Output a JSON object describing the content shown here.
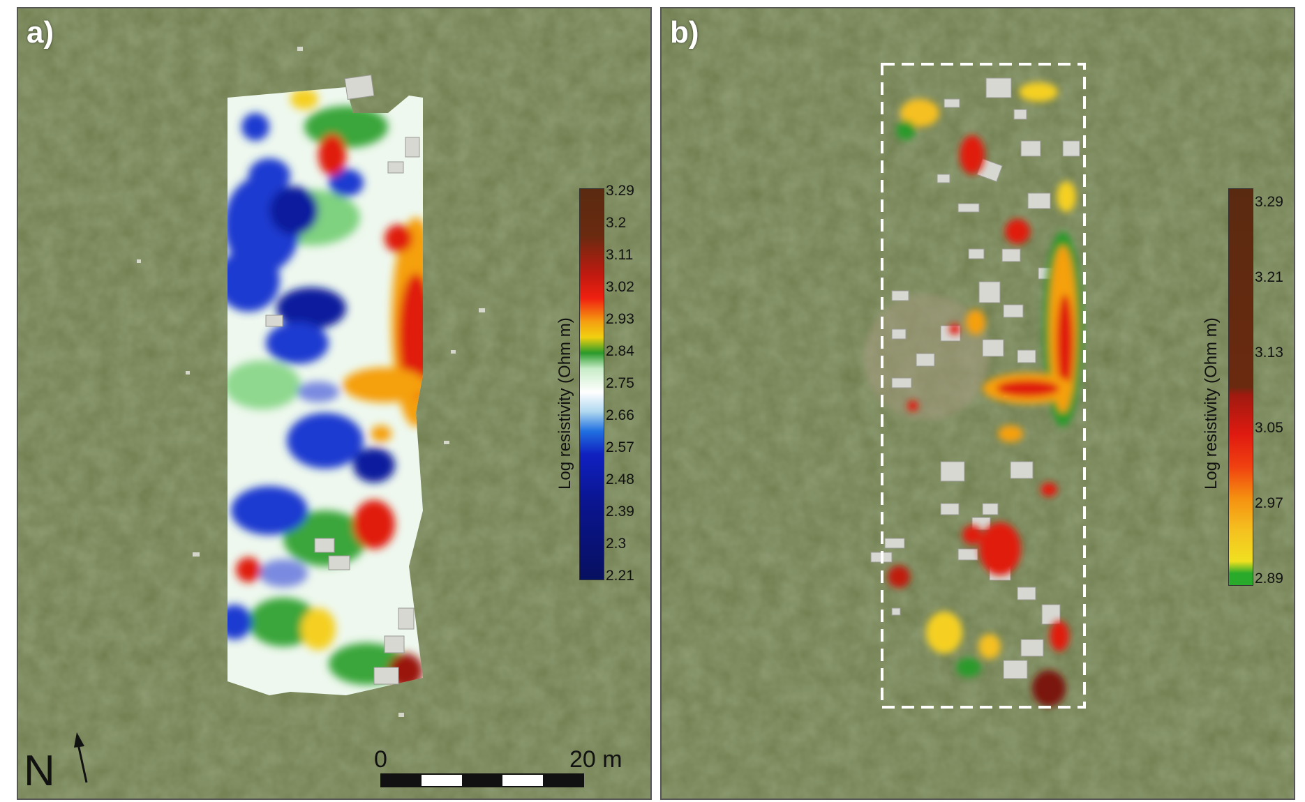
{
  "panels": [
    {
      "label": "a)"
    },
    {
      "label": "b)"
    }
  ],
  "legend_a": {
    "title": "Log resistivity (Ohm m)",
    "ticks": [
      "3.29",
      "3.2",
      "3.11",
      "3.02",
      "2.93",
      "2.84",
      "2.75",
      "2.66",
      "2.57",
      "2.48",
      "2.39",
      "2.3",
      "2.21"
    ]
  },
  "legend_b": {
    "title": "Log resistivity (Ohm m)",
    "ticks": [
      "3.29",
      "3.21",
      "3.13",
      "3.05",
      "2.97",
      "2.89"
    ]
  },
  "north_arrow": {
    "label": "N"
  },
  "scale_bar": {
    "start": "0",
    "end": "20 m"
  },
  "colors": {
    "grass": "#6f7d4e",
    "low_resistivity": "#0a1f9e",
    "mid_resistivity": "#eaf7ea",
    "high_resistivity": "#e01a10",
    "max_resistivity": "#5a2a10"
  },
  "icons": [
    "north-arrow-icon",
    "scale-bar-icon"
  ]
}
